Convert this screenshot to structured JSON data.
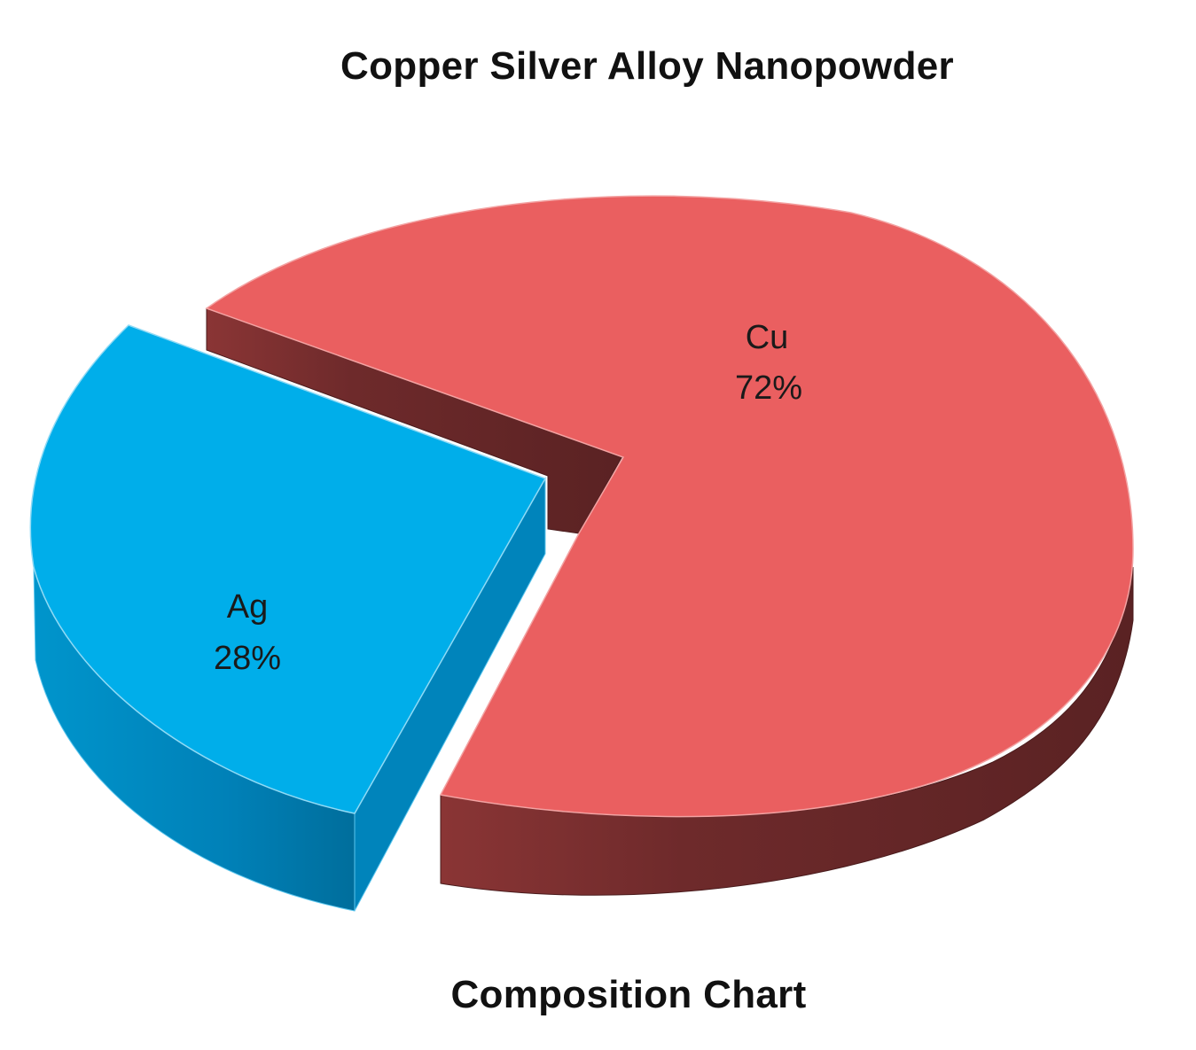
{
  "chart_data": {
    "type": "pie",
    "title": "Copper Silver Alloy Nanopowder",
    "subtitle": "Composition Chart",
    "categories": [
      "Cu",
      "Ag"
    ],
    "values": [
      72,
      28
    ],
    "value_labels": [
      "72%",
      "28%"
    ],
    "colors": {
      "Cu": {
        "top": "#ea5f60",
        "side": "#6e2a2b"
      },
      "Ag": {
        "top": "#00aeea",
        "side": "#0085bd"
      }
    },
    "style": "3d-exploded",
    "legend": "none"
  }
}
